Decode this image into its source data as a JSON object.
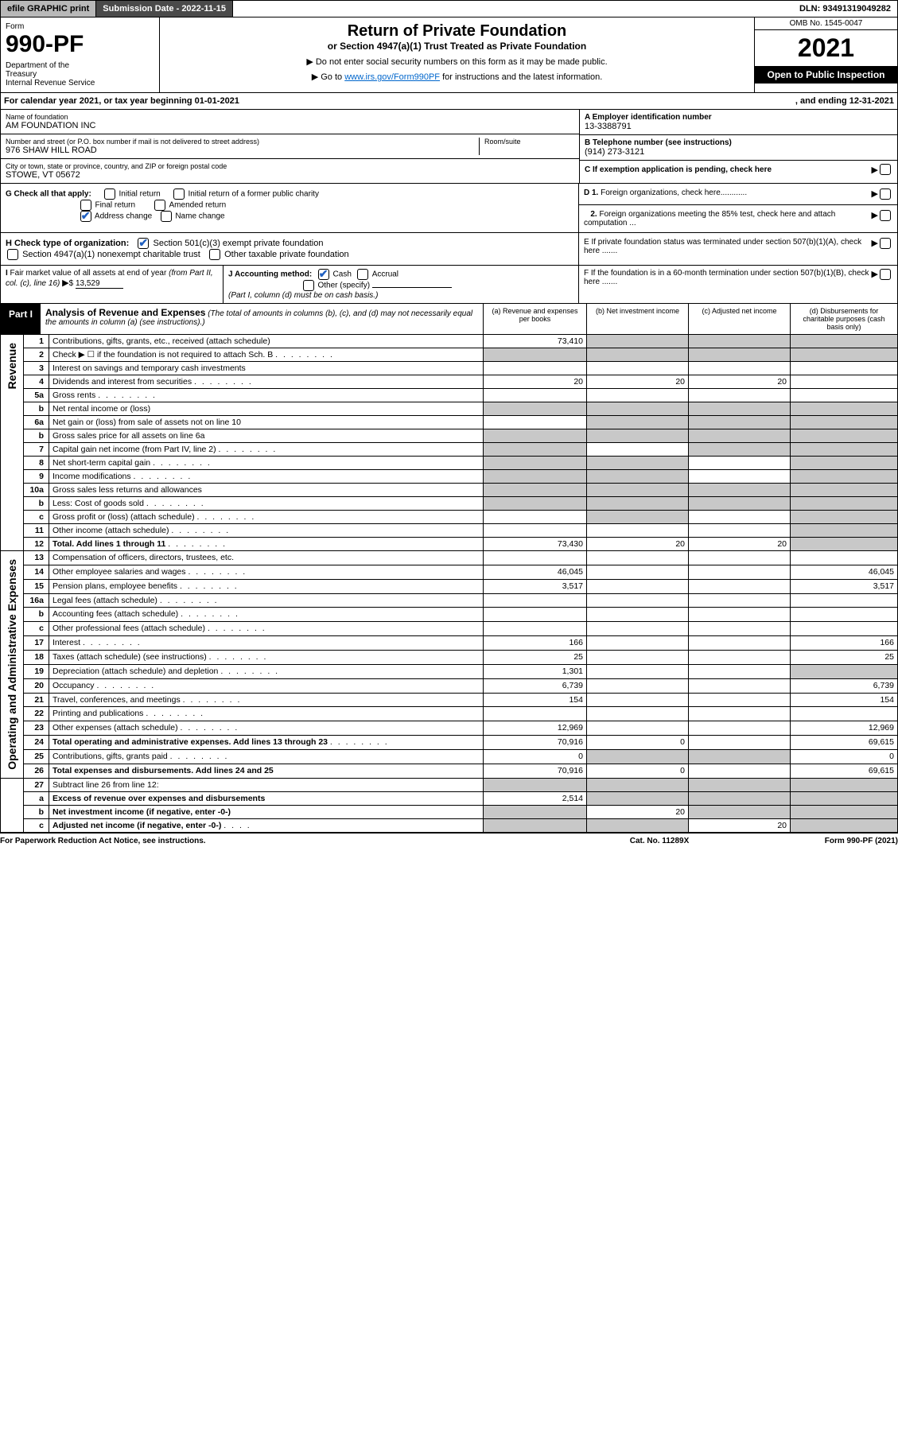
{
  "topbar": {
    "efile": "efile GRAPHIC print",
    "sub": "Submission Date - 2022-11-15",
    "dln": "DLN: 93491319049282"
  },
  "header": {
    "form": "Form",
    "formnum": "990-PF",
    "dept": "Department of the Treasury\nInternal Revenue Service",
    "title": "Return of Private Foundation",
    "subtitle": "or Section 4947(a)(1) Trust Treated as Private Foundation",
    "notice1": "▶ Do not enter social security numbers on this form as it may be made public.",
    "notice2": "▶ Go to www.irs.gov/Form990PF for instructions and the latest information.",
    "link": "www.irs.gov/Form990PF",
    "omb": "OMB No. 1545-0047",
    "year": "2021",
    "open": "Open to Public Inspection"
  },
  "yearline": {
    "left": "For calendar year 2021, or tax year beginning 01-01-2021",
    "right": ", and ending 12-31-2021"
  },
  "id": {
    "name_label": "Name of foundation",
    "name": "AM FOUNDATION INC",
    "addr_label": "Number and street (or P.O. box number if mail is not delivered to street address)",
    "addr": "976 SHAW HILL ROAD",
    "room_label": "Room/suite",
    "city_label": "City or town, state or province, country, and ZIP or foreign postal code",
    "city": "STOWE, VT  05672",
    "ein_label": "A Employer identification number",
    "ein": "13-3388791",
    "tel_label": "B Telephone number (see instructions)",
    "tel": "(914) 273-3121",
    "c_label": "C If exemption application is pending, check here"
  },
  "g": {
    "label": "G Check all that apply:",
    "initial": "Initial return",
    "initial_former": "Initial return of a former public charity",
    "final": "Final return",
    "amended": "Amended return",
    "address": "Address change",
    "name": "Name change"
  },
  "d": {
    "d1": "D 1. Foreign organizations, check here",
    "d2": "2. Foreign organizations meeting the 85% test, check here and attach computation ..."
  },
  "e": "E  If private foundation status was terminated under section 507(b)(1)(A), check here .......",
  "f": "F  If the foundation is in a 60-month termination under section 507(b)(1)(B), check here .......",
  "h": {
    "label": "H Check type of organization:",
    "opt1": "Section 501(c)(3) exempt private foundation",
    "opt2": "Section 4947(a)(1) nonexempt charitable trust",
    "opt3": "Other taxable private foundation"
  },
  "i": {
    "label": "I Fair market value of all assets at end of year (from Part II, col. (c), line 16)",
    "arrow": "▶$",
    "val": "13,529"
  },
  "j": {
    "label": "J Accounting method:",
    "cash": "Cash",
    "accrual": "Accrual",
    "other": "Other (specify)",
    "note": "(Part I, column (d) must be on cash basis.)"
  },
  "part1": {
    "tag": "Part I",
    "title": "Analysis of Revenue and Expenses",
    "note": "(The total of amounts in columns (b), (c), and (d) may not necessarily equal the amounts in column (a) (see instructions).)",
    "cols": {
      "a": "(a)   Revenue and expenses per books",
      "b": "(b)   Net investment income",
      "c": "(c)   Adjusted net income",
      "d": "(d)  Disbursements for charitable purposes (cash basis only)"
    }
  },
  "sides": {
    "revenue": "Revenue",
    "opex": "Operating and Administrative Expenses"
  },
  "rows": [
    {
      "n": "1",
      "d": "Contributions, gifts, grants, etc., received (attach schedule)",
      "a": "73,410",
      "grey_bcd": true
    },
    {
      "n": "2",
      "d": "Check ▶ ☐ if the foundation is not required to attach Sch. B",
      "dots": true,
      "grey_all": true
    },
    {
      "n": "3",
      "d": "Interest on savings and temporary cash investments"
    },
    {
      "n": "4",
      "d": "Dividends and interest from securities",
      "dots": true,
      "a": "20",
      "b": "20",
      "c": "20"
    },
    {
      "n": "5a",
      "d": "Gross rents",
      "dots": true
    },
    {
      "n": "b",
      "d": "Net rental income or (loss)",
      "inline": true,
      "grey_all": true
    },
    {
      "n": "6a",
      "d": "Net gain or (loss) from sale of assets not on line 10",
      "grey_bcd": true
    },
    {
      "n": "b",
      "d": "Gross sales price for all assets on line 6a",
      "inline": true,
      "grey_all": true
    },
    {
      "n": "7",
      "d": "Capital gain net income (from Part IV, line 2)",
      "dots": true,
      "grey_a": true,
      "grey_cd": true
    },
    {
      "n": "8",
      "d": "Net short-term capital gain",
      "dots": true,
      "grey_ab": true,
      "grey_d": true
    },
    {
      "n": "9",
      "d": "Income modifications",
      "dots": true,
      "grey_ab": true,
      "grey_d": true
    },
    {
      "n": "10a",
      "d": "Gross sales less returns and allowances",
      "inline": true,
      "grey_all": true
    },
    {
      "n": "b",
      "d": "Less: Cost of goods sold",
      "dots": true,
      "inline": true,
      "grey_all": true
    },
    {
      "n": "c",
      "d": "Gross profit or (loss) (attach schedule)",
      "dots": true,
      "grey_b": true,
      "grey_d": true
    },
    {
      "n": "11",
      "d": "Other income (attach schedule)",
      "dots": true,
      "grey_d": true
    },
    {
      "n": "12",
      "d": "Total. Add lines 1 through 11",
      "dots": true,
      "bold": true,
      "a": "73,430",
      "b": "20",
      "c": "20",
      "grey_d": true
    }
  ],
  "rows2": [
    {
      "n": "13",
      "d": "Compensation of officers, directors, trustees, etc."
    },
    {
      "n": "14",
      "d": "Other employee salaries and wages",
      "dots": true,
      "a": "46,045",
      "d4": "46,045"
    },
    {
      "n": "15",
      "d": "Pension plans, employee benefits",
      "dots": true,
      "a": "3,517",
      "d4": "3,517"
    },
    {
      "n": "16a",
      "d": "Legal fees (attach schedule)",
      "dots": true
    },
    {
      "n": "b",
      "d": "Accounting fees (attach schedule)",
      "dots": true
    },
    {
      "n": "c",
      "d": "Other professional fees (attach schedule)",
      "dots": true
    },
    {
      "n": "17",
      "d": "Interest",
      "dots": true,
      "a": "166",
      "d4": "166"
    },
    {
      "n": "18",
      "d": "Taxes (attach schedule) (see instructions)",
      "dots": true,
      "a": "25",
      "d4": "25"
    },
    {
      "n": "19",
      "d": "Depreciation (attach schedule) and depletion",
      "dots": true,
      "a": "1,301",
      "grey_d": true
    },
    {
      "n": "20",
      "d": "Occupancy",
      "dots": true,
      "a": "6,739",
      "d4": "6,739"
    },
    {
      "n": "21",
      "d": "Travel, conferences, and meetings",
      "dots": true,
      "a": "154",
      "d4": "154"
    },
    {
      "n": "22",
      "d": "Printing and publications",
      "dots": true
    },
    {
      "n": "23",
      "d": "Other expenses (attach schedule)",
      "dots": true,
      "a": "12,969",
      "d4": "12,969"
    },
    {
      "n": "24",
      "d": "Total operating and administrative expenses. Add lines 13 through 23",
      "dots": true,
      "bold": true,
      "a": "70,916",
      "b": "0",
      "d4": "69,615"
    },
    {
      "n": "25",
      "d": "Contributions, gifts, grants paid",
      "dots": true,
      "a": "0",
      "d4": "0",
      "grey_bc": true
    },
    {
      "n": "26",
      "d": "Total expenses and disbursements. Add lines 24 and 25",
      "bold": true,
      "a": "70,916",
      "b": "0",
      "d4": "69,615"
    }
  ],
  "rows3": [
    {
      "n": "27",
      "d": "Subtract line 26 from line 12:",
      "grey_all": true
    },
    {
      "n": "a",
      "d": "Excess of revenue over expenses and disbursements",
      "bold": true,
      "a": "2,514",
      "grey_bcd": true
    },
    {
      "n": "b",
      "d": "Net investment income (if negative, enter -0-)",
      "bold": true,
      "b": "20",
      "grey_a": true,
      "grey_cd": true
    },
    {
      "n": "c",
      "d": "Adjusted net income (if negative, enter -0-)",
      "dots": true,
      "bold": true,
      "c": "20",
      "grey_ab": true,
      "grey_d": true
    }
  ],
  "footer": {
    "l": "For Paperwork Reduction Act Notice, see instructions.",
    "c": "Cat. No. 11289X",
    "r": "Form 990-PF (2021)"
  },
  "colors": {
    "grey": "#c8c8c8",
    "darkbtn": "#4a4a4a",
    "lightbtn": "#b8b8b8",
    "link": "#0066cc"
  }
}
